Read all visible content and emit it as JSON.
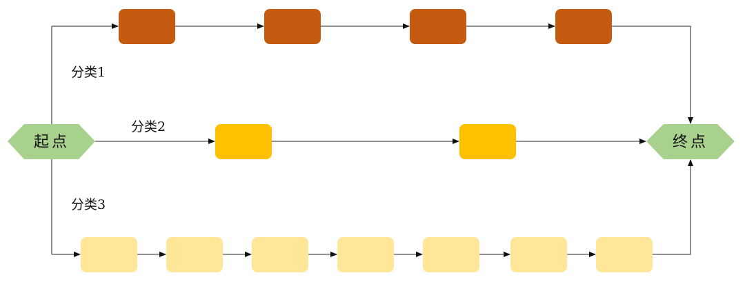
{
  "start": {
    "label": "起点"
  },
  "end": {
    "label": "终点"
  },
  "colors": {
    "terminal": "#A9D18E",
    "category1": "#C55A11",
    "category2": "#FFC000",
    "category3": "#FFE699",
    "edge": "#555555"
  },
  "categories": [
    {
      "label": "分类1",
      "step_count": 4
    },
    {
      "label": "分类2",
      "step_count": 2
    },
    {
      "label": "分类3",
      "step_count": 7
    }
  ]
}
